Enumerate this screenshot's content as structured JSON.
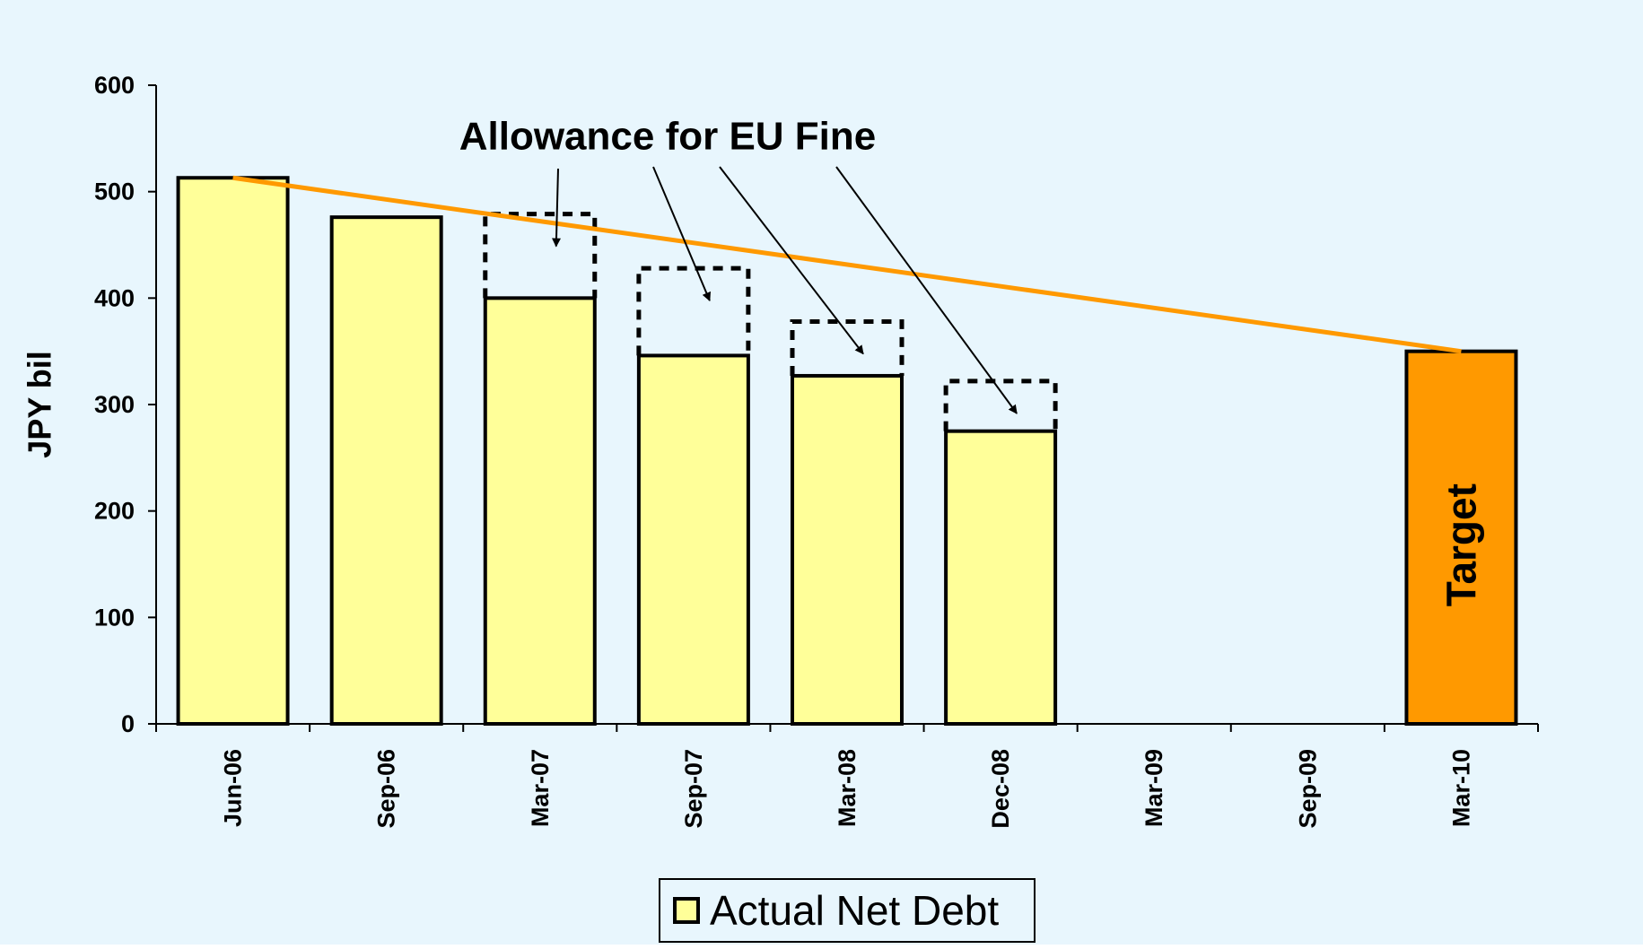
{
  "chart_data": {
    "type": "bar",
    "ylabel": "JPY bil",
    "xlabel": "",
    "ylim": [
      0,
      600
    ],
    "yticks": [
      0,
      100,
      200,
      300,
      400,
      500,
      600
    ],
    "grid": false,
    "categories": [
      "Jun-06",
      "Sep-06",
      "Mar-07",
      "Sep-07",
      "Mar-08",
      "Dec-08",
      "Mar-09",
      "Sep-09",
      "Mar-10"
    ],
    "series": [
      {
        "name": "Actual Net Debt",
        "values": [
          513,
          476,
          400,
          346,
          327,
          275,
          null,
          null,
          null
        ],
        "color": "#ffff99"
      },
      {
        "name": "",
        "values": [
          null,
          null,
          null,
          null,
          null,
          null,
          null,
          null,
          350
        ],
        "color": "#ff9900",
        "bar_label": "Target"
      }
    ],
    "eu_fine_allowance": {
      "label": "Allowance for EU Fine",
      "tops": [
        null,
        null,
        479,
        428,
        378,
        322,
        null,
        null,
        null
      ]
    },
    "trend_line": {
      "color": "#ff9900",
      "from": {
        "category": "Jun-06",
        "value": 513
      },
      "to": {
        "category": "Mar-10",
        "value": 350
      }
    },
    "legend": {
      "placement": "bottom-center",
      "entries": [
        "Actual Net Debt"
      ]
    },
    "background_color": "#e8f6fd",
    "axis_color": "#000000"
  }
}
